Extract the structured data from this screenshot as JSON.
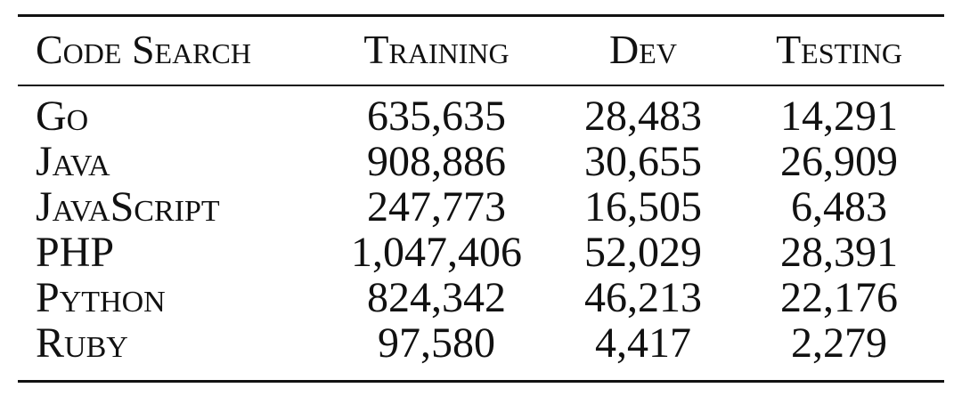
{
  "table": {
    "header": [
      "Code Search",
      "Training",
      "Dev",
      "Testing"
    ],
    "rows": [
      [
        "Go",
        "635,635",
        "28,483",
        "14,291"
      ],
      [
        "Java",
        "908,886",
        "30,655",
        "26,909"
      ],
      [
        "JavaScript",
        "247,773",
        "16,505",
        "6,483"
      ],
      [
        "PHP",
        "1,047,406",
        "52,029",
        "28,391"
      ],
      [
        "Python",
        "824,342",
        "46,213",
        "22,176"
      ],
      [
        "Ruby",
        "97,580",
        "4,417",
        "2,279"
      ]
    ]
  }
}
